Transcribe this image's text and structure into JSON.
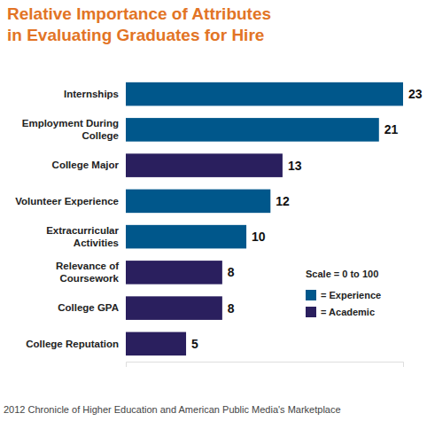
{
  "chart_data": {
    "type": "bar",
    "orientation": "horizontal",
    "stacked": true,
    "title": "Relative Importance of Attributes in Evaluating Graduates for Hire",
    "categories": [
      "Internships",
      "Employment During College",
      "College Major",
      "Volunteer Experience",
      "Extracurricular Activities",
      "Relevance of Coursework",
      "College GPA",
      "College Reputation"
    ],
    "series": [
      {
        "name": "= Experience",
        "color": "#00578b",
        "values": [
          23,
          21,
          null,
          12,
          10,
          null,
          null,
          null
        ]
      },
      {
        "name": "= Academic",
        "color": "#2a1f5e",
        "values": [
          null,
          null,
          13,
          null,
          null,
          8,
          8,
          5
        ]
      }
    ],
    "xlim": [
      0,
      23
    ],
    "tick_labels": false,
    "data_labels": true,
    "legend": "bottom-right",
    "annotation": "Scale = 0 to 100",
    "source": "2012 Chronicle of Higher Education and American Public Media's Marketplace"
  }
}
